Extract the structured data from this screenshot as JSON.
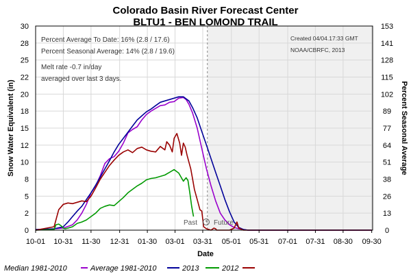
{
  "chart_data": {
    "type": "line",
    "title": "Colorado Basin River Forecast Center",
    "subtitle": "BLTU1 - BEN LOMOND TRAIL",
    "xlabel": "Date",
    "ylabel": "Snow Water Equivalent (in)",
    "y2label": "Percent Seasonal Average",
    "ylim": [
      0,
      30
    ],
    "y2lim": [
      0,
      153
    ],
    "xlim": [
      0,
      365
    ],
    "grid": true,
    "yticks": [
      "0",
      "2",
      "5",
      "8",
      "10",
      "12",
      "15",
      "18",
      "20",
      "22",
      "25",
      "28",
      "30"
    ],
    "y2ticks": [
      "0",
      "13",
      "26",
      "38",
      "51",
      "64",
      "77",
      "89",
      "102",
      "115",
      "128",
      "141",
      "153"
    ],
    "xtick_labels": [
      "10-01",
      "10-31",
      "11-30",
      "12-31",
      "01-30",
      "03-01",
      "03-31",
      "05-01",
      "05-31",
      "07-01",
      "07-31",
      "08-30",
      "09-30"
    ],
    "xtick_days": [
      0,
      30,
      60,
      91,
      121,
      151,
      181,
      212,
      242,
      273,
      303,
      333,
      364
    ],
    "today_day": 186,
    "past_label": "Past",
    "future_label": "Future",
    "info": {
      "pct_avg_to_date": "Percent Average To Date: 16% (2.8 / 17.6)",
      "pct_seasonal_avg": "Percent Seasonal Average: 14% (2.8 / 19.6)",
      "melt_rate": "Melt rate -0.7 in/day",
      "melt_rate_note": "averaged over last 3 days.",
      "created": "Created 04/04.17:33 GMT",
      "source": "NOAA/CBRFC, 2013"
    },
    "series": [
      {
        "name": "Median 1981-2010",
        "color": "#ffffff",
        "x": [],
        "y": []
      },
      {
        "name": "Average 1981-2010",
        "color": "#9900cc",
        "x": [
          0,
          10,
          20,
          30,
          40,
          45,
          50,
          55,
          60,
          65,
          70,
          75,
          80,
          85,
          90,
          95,
          100,
          105,
          110,
          115,
          120,
          125,
          130,
          135,
          140,
          145,
          150,
          155,
          160,
          163,
          166,
          170,
          175,
          180,
          185,
          190,
          195,
          200,
          205,
          210,
          215,
          220,
          225,
          230,
          240,
          260,
          300,
          364
        ],
        "y": [
          0,
          0.1,
          0.2,
          0.3,
          0.8,
          1.5,
          2.5,
          3.8,
          5.5,
          6.5,
          8.0,
          9.8,
          10.5,
          10.8,
          11.6,
          12.8,
          14.3,
          14.8,
          15.2,
          16.2,
          17.0,
          17.5,
          17.9,
          18.3,
          18.4,
          18.8,
          18.9,
          19.4,
          19.5,
          19.2,
          18.5,
          17.2,
          15.0,
          12.0,
          9.0,
          6.5,
          4.3,
          2.5,
          1.5,
          0.8,
          0.4,
          0.2,
          0.1,
          0,
          0,
          0,
          0,
          0
        ]
      },
      {
        "name": "2013",
        "color": "#000099",
        "x": [
          0,
          20,
          30,
          35,
          40,
          45,
          50,
          55,
          60,
          65,
          70,
          75,
          80,
          85,
          90,
          95,
          100,
          105,
          110,
          115,
          120,
          125,
          130,
          135,
          140,
          145,
          150,
          155,
          160,
          163,
          166,
          170,
          175,
          180,
          185,
          190,
          195,
          200,
          205,
          210,
          215,
          220,
          225,
          230,
          364
        ],
        "y": [
          0.1,
          0.2,
          0.5,
          1.2,
          2.0,
          2.8,
          3.5,
          4.5,
          5.5,
          6.6,
          7.8,
          9.0,
          10.2,
          11.5,
          12.6,
          13.5,
          14.4,
          15.3,
          16.2,
          16.8,
          17.4,
          17.8,
          18.3,
          18.8,
          19.0,
          19.2,
          19.4,
          19.6,
          19.6,
          19.3,
          19.0,
          18.0,
          16.5,
          14.5,
          12.5,
          10.5,
          8.5,
          6.5,
          4.5,
          2.7,
          1.2,
          0.4,
          0.1,
          0,
          0
        ]
      },
      {
        "name": "2012",
        "color": "#009900",
        "x": [
          0,
          20,
          22,
          25,
          28,
          30,
          32,
          35,
          40,
          45,
          50,
          55,
          60,
          65,
          70,
          75,
          80,
          85,
          90,
          95,
          100,
          105,
          110,
          115,
          120,
          125,
          130,
          135,
          140,
          145,
          150,
          155,
          160,
          163,
          165,
          167,
          169,
          171
        ],
        "y": [
          0,
          0.1,
          0.8,
          0.9,
          0.6,
          0.3,
          0.2,
          0.3,
          0.5,
          1.0,
          1.2,
          1.5,
          2.0,
          2.5,
          3.2,
          3.5,
          3.7,
          3.6,
          4.2,
          4.8,
          5.5,
          6.0,
          6.5,
          6.9,
          7.4,
          7.6,
          7.7,
          7.9,
          8.1,
          8.5,
          8.9,
          8.4,
          7.2,
          7.7,
          7.3,
          5.5,
          3.5,
          2.0
        ]
      },
      {
        "name": "Median 1981-2010",
        "color": "#990000",
        "x": [
          0,
          20,
          25,
          30,
          35,
          40,
          45,
          50,
          55,
          60,
          65,
          70,
          75,
          80,
          85,
          90,
          95,
          100,
          105,
          110,
          115,
          120,
          125,
          130,
          135,
          140,
          142,
          145,
          148,
          150,
          153,
          156,
          158,
          160,
          162,
          164,
          166,
          168,
          170,
          172,
          175,
          178,
          180,
          182,
          185,
          190,
          193,
          195,
          196,
          198,
          200,
          205,
          210,
          215,
          218,
          220,
          225,
          230,
          364
        ],
        "y": [
          0,
          0.5,
          3.0,
          3.8,
          4.0,
          3.9,
          4.1,
          4.3,
          4.2,
          5.0,
          6.2,
          7.5,
          8.5,
          9.5,
          10.3,
          11.0,
          11.5,
          11.8,
          11.4,
          12.0,
          12.2,
          11.8,
          11.6,
          11.5,
          12.3,
          11.8,
          13.0,
          12.5,
          11.5,
          13.5,
          14.2,
          12.8,
          11.0,
          12.8,
          12.2,
          11.0,
          10.0,
          9.0,
          7.5,
          6.0,
          4.5,
          3.0,
          2.8,
          0.5,
          0.2,
          0.0,
          0.3,
          0.2,
          0.0,
          0.0,
          0.0,
          0.0,
          0.0,
          0.3,
          1.2,
          0.3,
          0,
          0,
          0
        ]
      }
    ]
  },
  "legend": {
    "median_label": "Median 1981-2010",
    "average_label": "Average 1981-2010",
    "y2013_label": "2013",
    "y2012_label": "2012"
  }
}
